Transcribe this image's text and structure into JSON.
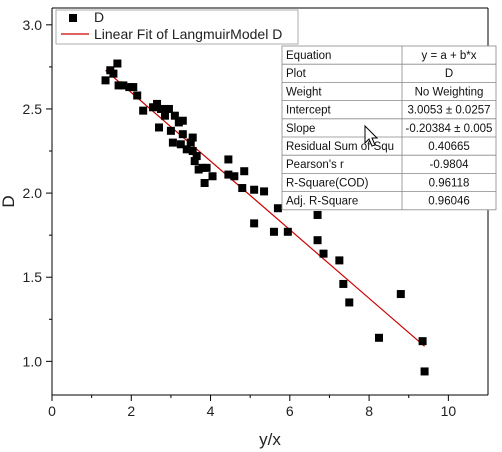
{
  "chart_data": {
    "type": "scatter",
    "xlabel": "y/x",
    "ylabel": "D",
    "xlim": [
      0,
      11
    ],
    "ylim": [
      0.8,
      3.1
    ],
    "xticks": [
      0,
      2,
      4,
      6,
      8,
      10
    ],
    "yticks": [
      1.0,
      1.5,
      2.0,
      2.5,
      3.0
    ],
    "xtick_labels": [
      "0",
      "2",
      "4",
      "6",
      "8",
      "10"
    ],
    "ytick_labels": [
      "1.0",
      "1.5",
      "2.0",
      "2.5",
      "3.0"
    ],
    "legend": {
      "placement": "top-left",
      "entries": [
        "D",
        "Linear Fit of LangmuirModel D"
      ]
    },
    "series": [
      {
        "name": "D",
        "marker": "square",
        "color": "#000000",
        "points": [
          [
            1.35,
            2.67
          ],
          [
            1.47,
            2.73
          ],
          [
            1.55,
            2.71
          ],
          [
            1.65,
            2.77
          ],
          [
            1.68,
            2.64
          ],
          [
            1.8,
            2.64
          ],
          [
            1.95,
            2.63
          ],
          [
            2.05,
            2.63
          ],
          [
            2.15,
            2.58
          ],
          [
            2.3,
            2.49
          ],
          [
            2.55,
            2.51
          ],
          [
            2.65,
            2.53
          ],
          [
            2.7,
            2.39
          ],
          [
            2.75,
            2.5
          ],
          [
            2.85,
            2.46
          ],
          [
            2.95,
            2.5
          ],
          [
            3.0,
            2.37
          ],
          [
            3.05,
            2.3
          ],
          [
            3.1,
            2.46
          ],
          [
            3.2,
            2.42
          ],
          [
            3.25,
            2.29
          ],
          [
            3.3,
            2.35
          ],
          [
            3.3,
            2.43
          ],
          [
            3.4,
            2.26
          ],
          [
            3.5,
            2.3
          ],
          [
            3.55,
            2.25
          ],
          [
            3.55,
            2.33
          ],
          [
            3.6,
            2.19
          ],
          [
            3.65,
            2.22
          ],
          [
            3.7,
            2.14
          ],
          [
            3.8,
            2.15
          ],
          [
            3.85,
            2.06
          ],
          [
            3.9,
            2.15
          ],
          [
            4.05,
            2.1
          ],
          [
            4.45,
            2.2
          ],
          [
            4.45,
            2.11
          ],
          [
            4.6,
            2.1
          ],
          [
            4.8,
            2.03
          ],
          [
            4.85,
            2.13
          ],
          [
            5.1,
            2.02
          ],
          [
            5.1,
            1.82
          ],
          [
            5.35,
            2.01
          ],
          [
            5.6,
            1.77
          ],
          [
            5.7,
            1.91
          ],
          [
            5.95,
            1.77
          ],
          [
            6.7,
            1.87
          ],
          [
            6.7,
            1.72
          ],
          [
            6.85,
            1.64
          ],
          [
            7.25,
            1.6
          ],
          [
            7.35,
            1.46
          ],
          [
            7.5,
            1.35
          ],
          [
            8.25,
            1.14
          ],
          [
            8.8,
            1.4
          ],
          [
            9.35,
            1.12
          ],
          [
            9.4,
            0.94
          ]
        ]
      }
    ],
    "fit": {
      "name": "Linear Fit of LangmuirModel D",
      "color": "#cc0000",
      "intercept": 3.0053,
      "slope": -0.20384,
      "x_range": [
        1.35,
        9.4
      ]
    },
    "stats_table": {
      "placement": "top-right",
      "rows": [
        [
          "Equation",
          "y = a + b*x"
        ],
        [
          "Plot",
          "D"
        ],
        [
          "Weight",
          "No Weighting"
        ],
        [
          "Intercept",
          "3.0053 ± 0.0257"
        ],
        [
          "Slope",
          "-0.20384 ± 0.005"
        ],
        [
          "Residual Sum of Squ",
          "0.40665"
        ],
        [
          "Pearson's r",
          "-0.9804"
        ],
        [
          "R-Square(COD)",
          "0.96118"
        ],
        [
          "Adj. R-Square",
          "0.96046"
        ]
      ]
    }
  }
}
